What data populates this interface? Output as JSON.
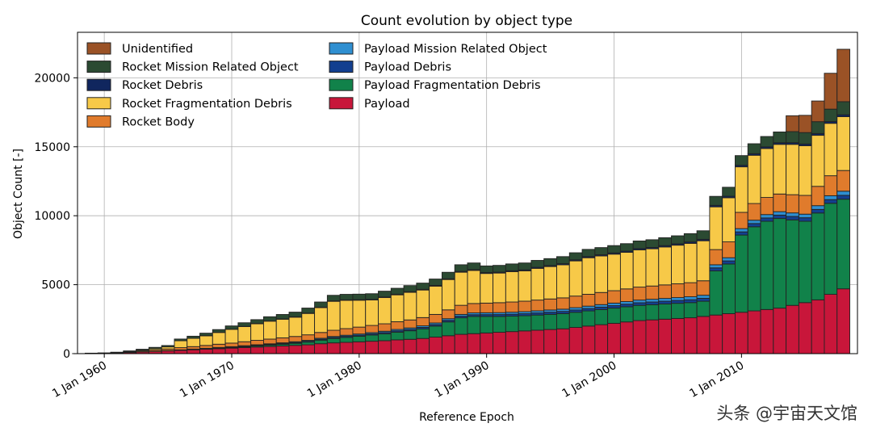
{
  "watermark": "头条 @宇宙天文馆",
  "colors": {
    "Unidentified": "#9a5226",
    "Rocket Mission Related Object": "#2b4a32",
    "Rocket Debris": "#10265e",
    "Rocket Fragmentation Debris": "#f7c948",
    "Rocket Body": "#e07b2c",
    "Payload Mission Related Object": "#2f8fd1",
    "Payload Debris": "#123f8f",
    "Payload Fragmentation Debris": "#11824a",
    "Payload": "#c8163a"
  },
  "chart_data": {
    "type": "bar",
    "stacked": true,
    "title": "Count evolution by object type",
    "xlabel": "Reference Epoch",
    "ylabel": "Object Count [-]",
    "xlim": [
      1957.9,
      2019.1
    ],
    "ylim": [
      0,
      23300
    ],
    "grid": true,
    "legend_position": "top-left",
    "x_ticks": [
      {
        "value": 1960,
        "label": "1 Jan 1960"
      },
      {
        "value": 1970,
        "label": "1 Jan 1970"
      },
      {
        "value": 1980,
        "label": "1 Jan 1980"
      },
      {
        "value": 1990,
        "label": "1 Jan 1990"
      },
      {
        "value": 2000,
        "label": "1 Jan 2000"
      },
      {
        "value": 2010,
        "label": "1 Jan 2010"
      }
    ],
    "y_ticks": [
      {
        "value": 0,
        "label": "0"
      },
      {
        "value": 5000,
        "label": "5000"
      },
      {
        "value": 10000,
        "label": "10000"
      },
      {
        "value": 15000,
        "label": "15000"
      },
      {
        "value": 20000,
        "label": "20000"
      }
    ],
    "legend_columns": [
      [
        "Unidentified",
        "Rocket Mission Related Object",
        "Rocket Debris",
        "Rocket Fragmentation Debris",
        "Rocket Body"
      ],
      [
        "Payload Mission Related Object",
        "Payload Debris",
        "Payload Fragmentation Debris",
        "Payload"
      ]
    ],
    "stack_order": [
      "Payload",
      "Payload Fragmentation Debris",
      "Payload Debris",
      "Payload Mission Related Object",
      "Rocket Body",
      "Rocket Fragmentation Debris",
      "Rocket Debris",
      "Rocket Mission Related Object",
      "Unidentified"
    ],
    "x": [
      1958,
      1959,
      1960,
      1961,
      1962,
      1963,
      1964,
      1965,
      1966,
      1967,
      1968,
      1969,
      1970,
      1971,
      1972,
      1973,
      1974,
      1975,
      1976,
      1977,
      1978,
      1979,
      1980,
      1981,
      1982,
      1983,
      1984,
      1985,
      1986,
      1987,
      1988,
      1989,
      1990,
      1991,
      1992,
      1993,
      1994,
      1995,
      1996,
      1997,
      1998,
      1999,
      2000,
      2001,
      2002,
      2003,
      2004,
      2005,
      2006,
      2007,
      2008,
      2009,
      2010,
      2011,
      2012,
      2013,
      2014,
      2015,
      2016,
      2017,
      2018
    ],
    "series": [
      {
        "name": "Payload",
        "values": [
          5,
          10,
          20,
          40,
          80,
          120,
          160,
          200,
          240,
          280,
          320,
          360,
          400,
          440,
          480,
          520,
          560,
          600,
          640,
          720,
          780,
          820,
          860,
          900,
          940,
          1000,
          1040,
          1100,
          1200,
          1300,
          1400,
          1450,
          1500,
          1550,
          1600,
          1650,
          1700,
          1750,
          1800,
          1900,
          2000,
          2100,
          2200,
          2300,
          2400,
          2450,
          2500,
          2550,
          2600,
          2700,
          2800,
          2900,
          3000,
          3100,
          3200,
          3300,
          3500,
          3700,
          3900,
          4300,
          4700
        ]
      },
      {
        "name": "Payload Fragmentation Debris",
        "values": [
          0,
          0,
          0,
          0,
          0,
          0,
          0,
          5,
          10,
          15,
          20,
          30,
          40,
          60,
          80,
          100,
          120,
          150,
          200,
          260,
          320,
          360,
          400,
          450,
          500,
          560,
          620,
          700,
          800,
          1000,
          1200,
          1250,
          1200,
          1150,
          1120,
          1100,
          1100,
          1100,
          1100,
          1100,
          1100,
          1100,
          1100,
          1100,
          1100,
          1100,
          1100,
          1100,
          1100,
          1100,
          3200,
          3600,
          5600,
          6100,
          6400,
          6500,
          6200,
          5900,
          6300,
          6600,
          6500
        ]
      },
      {
        "name": "Payload Debris",
        "values": [
          0,
          0,
          0,
          0,
          0,
          0,
          0,
          5,
          10,
          15,
          20,
          25,
          30,
          35,
          40,
          45,
          50,
          55,
          60,
          65,
          70,
          75,
          80,
          85,
          90,
          95,
          100,
          105,
          110,
          115,
          120,
          125,
          130,
          135,
          140,
          145,
          150,
          155,
          160,
          165,
          170,
          175,
          180,
          185,
          190,
          195,
          200,
          205,
          210,
          215,
          220,
          225,
          230,
          235,
          240,
          245,
          250,
          255,
          260,
          270,
          280
        ]
      },
      {
        "name": "Payload Mission Related Object",
        "values": [
          0,
          0,
          0,
          0,
          0,
          0,
          5,
          10,
          15,
          20,
          25,
          30,
          35,
          40,
          45,
          50,
          55,
          60,
          65,
          70,
          75,
          80,
          85,
          90,
          95,
          100,
          105,
          110,
          115,
          120,
          125,
          130,
          135,
          140,
          145,
          150,
          155,
          160,
          165,
          170,
          175,
          180,
          185,
          190,
          195,
          200,
          205,
          210,
          215,
          220,
          225,
          230,
          235,
          240,
          245,
          250,
          255,
          260,
          270,
          280,
          300
        ]
      },
      {
        "name": "Rocket Body",
        "values": [
          0,
          10,
          15,
          25,
          40,
          70,
          100,
          120,
          160,
          180,
          210,
          240,
          260,
          290,
          320,
          340,
          360,
          380,
          400,
          420,
          450,
          480,
          500,
          520,
          540,
          560,
          580,
          600,
          620,
          640,
          660,
          680,
          700,
          720,
          740,
          760,
          780,
          800,
          820,
          840,
          860,
          880,
          900,
          920,
          940,
          960,
          980,
          1000,
          1020,
          1050,
          1100,
          1150,
          1180,
          1210,
          1240,
          1280,
          1320,
          1360,
          1400,
          1450,
          1500
        ]
      },
      {
        "name": "Rocket Fragmentation Debris",
        "values": [
          0,
          0,
          0,
          0,
          20,
          60,
          100,
          150,
          500,
          600,
          700,
          850,
          1000,
          1100,
          1200,
          1300,
          1350,
          1400,
          1550,
          1800,
          2100,
          2050,
          1950,
          1850,
          1900,
          1950,
          2000,
          2000,
          2050,
          2200,
          2400,
          2400,
          2150,
          2150,
          2200,
          2200,
          2300,
          2350,
          2400,
          2550,
          2650,
          2650,
          2650,
          2650,
          2700,
          2700,
          2750,
          2800,
          2850,
          2900,
          3100,
          3200,
          3300,
          3500,
          3550,
          3600,
          3650,
          3600,
          3700,
          3800,
          3900
        ]
      },
      {
        "name": "Rocket Debris",
        "values": [
          0,
          0,
          0,
          0,
          0,
          0,
          0,
          0,
          5,
          5,
          10,
          10,
          15,
          15,
          20,
          20,
          25,
          25,
          30,
          30,
          35,
          35,
          40,
          40,
          45,
          45,
          50,
          50,
          55,
          55,
          60,
          60,
          65,
          65,
          70,
          70,
          75,
          75,
          80,
          80,
          85,
          85,
          90,
          90,
          95,
          95,
          100,
          100,
          105,
          105,
          110,
          110,
          115,
          115,
          120,
          120,
          125,
          125,
          130,
          130,
          140
        ]
      },
      {
        "name": "Rocket Mission Related Object",
        "values": [
          0,
          15,
          20,
          40,
          60,
          70,
          90,
          100,
          120,
          150,
          180,
          200,
          230,
          260,
          280,
          300,
          320,
          340,
          360,
          380,
          400,
          400,
          400,
          410,
          420,
          430,
          440,
          450,
          460,
          470,
          480,
          480,
          480,
          490,
          490,
          500,
          500,
          500,
          510,
          510,
          520,
          520,
          530,
          540,
          550,
          560,
          570,
          580,
          600,
          620,
          650,
          650,
          700,
          720,
          750,
          780,
          800,
          830,
          860,
          900,
          950
        ]
      },
      {
        "name": "Unidentified",
        "values": [
          0,
          0,
          0,
          0,
          0,
          0,
          0,
          0,
          0,
          0,
          0,
          0,
          0,
          0,
          0,
          0,
          0,
          0,
          0,
          0,
          0,
          0,
          0,
          0,
          0,
          0,
          0,
          0,
          0,
          0,
          0,
          0,
          0,
          0,
          0,
          0,
          0,
          0,
          0,
          0,
          0,
          0,
          0,
          0,
          0,
          0,
          0,
          0,
          0,
          0,
          0,
          0,
          0,
          0,
          0,
          0,
          1150,
          1250,
          1500,
          2600,
          3800
        ]
      }
    ]
  }
}
